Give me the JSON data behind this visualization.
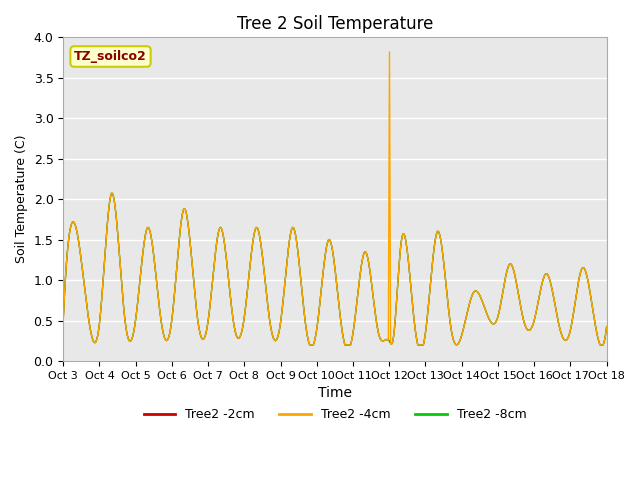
{
  "title": "Tree 2 Soil Temperature",
  "ylabel": "Soil Temperature (C)",
  "xlabel": "Time",
  "annotation_text": "TZ_soilco2",
  "ylim": [
    0.0,
    4.0
  ],
  "yticks": [
    0.0,
    0.5,
    1.0,
    1.5,
    2.0,
    2.5,
    3.0,
    3.5,
    4.0
  ],
  "bg_color": "#dcdcdc",
  "plot_bg_color": "#e8e8e8",
  "line_colors": {
    "2cm": "#cc0000",
    "4cm": "#ffa500",
    "8cm": "#00cc00"
  },
  "legend_labels": [
    "Tree2 -2cm",
    "Tree2 -4cm",
    "Tree2 -8cm"
  ],
  "x_tick_labels": [
    "Oct 3",
    "Oct 4",
    "Oct 5",
    "Oct 6",
    "Oct 7",
    "Oct 8",
    "Oct 9",
    "Oct 10",
    "Oct 11",
    "Oct 12",
    "Oct 13",
    "Oct 14",
    "Oct 15",
    "Oct 16",
    "Oct 17",
    "Oct 18"
  ],
  "spike_value": 3.82,
  "spike_day": 9.0,
  "peaks": [
    1.65,
    2.07,
    1.65,
    1.88,
    1.65,
    1.65,
    1.65,
    1.5,
    1.35,
    1.45,
    1.47,
    1.6,
    0.85,
    1.2,
    1.08,
    1.15
  ],
  "troughs": [
    0.52,
    0.47,
    0.52,
    0.5,
    0.55,
    0.48,
    0.4,
    0.35,
    0.35,
    0.25,
    0.42,
    0.32,
    0.57,
    0.52,
    0.38,
    0.42
  ],
  "figsize": [
    6.4,
    4.8
  ],
  "dpi": 100
}
